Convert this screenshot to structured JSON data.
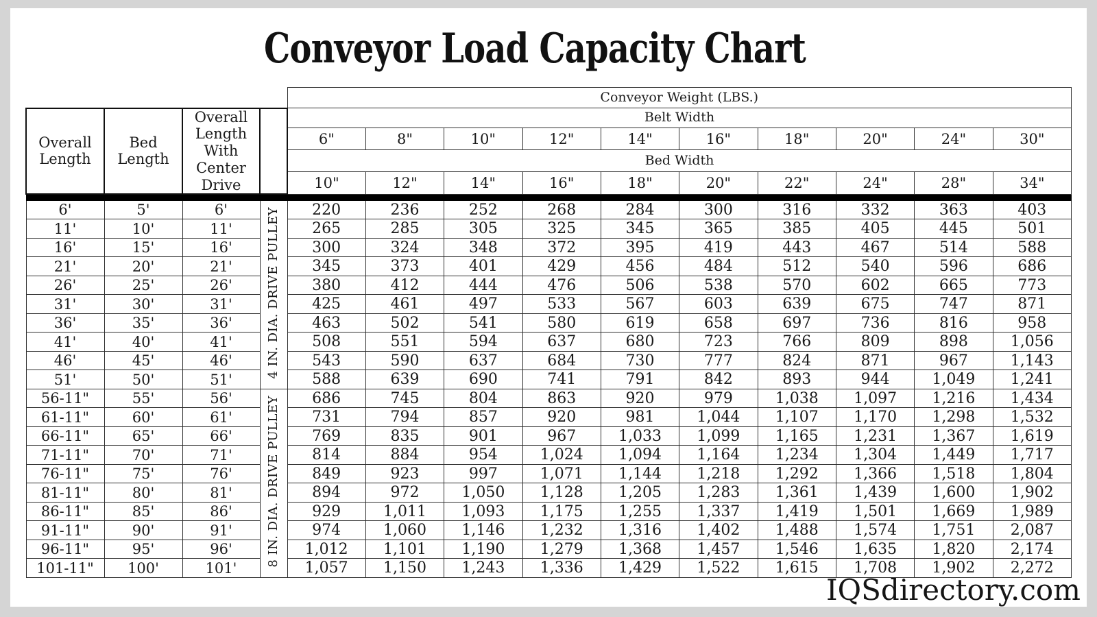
{
  "title": "Conveyor Load Capacity Chart",
  "watermark": "IQSdirectory.com",
  "colors": {
    "background": "#d5d5d5",
    "page": "#ffffff",
    "text": "#1a1a1a",
    "divider_bar": "#000000"
  },
  "chart_data": {
    "type": "table",
    "title": "Conveyor Load Capacity Chart",
    "weight_header": "Conveyor Weight (LBS.)",
    "belt_width_label": "Belt Width",
    "bed_width_label": "Bed Width",
    "belt_widths": [
      "6\"",
      "8\"",
      "10\"",
      "12\"",
      "14\"",
      "16\"",
      "18\"",
      "20\"",
      "24\"",
      "30\""
    ],
    "bed_widths": [
      "10\"",
      "12\"",
      "14\"",
      "16\"",
      "18\"",
      "20\"",
      "22\"",
      "24\"",
      "28\"",
      "34\""
    ],
    "left_headers": [
      "Overall Length",
      "Bed Length",
      "Overall Length With Center Drive"
    ],
    "sections": [
      {
        "pulley": "4 IN. DIA. DRIVE PULLEY",
        "rows": [
          {
            "overall_length": "6'",
            "bed_length": "5'",
            "center_drive": "6'",
            "weights": [
              "220",
              "236",
              "252",
              "268",
              "284",
              "300",
              "316",
              "332",
              "363",
              "403"
            ]
          },
          {
            "overall_length": "11'",
            "bed_length": "10'",
            "center_drive": "11'",
            "weights": [
              "265",
              "285",
              "305",
              "325",
              "345",
              "365",
              "385",
              "405",
              "445",
              "501"
            ]
          },
          {
            "overall_length": "16'",
            "bed_length": "15'",
            "center_drive": "16'",
            "weights": [
              "300",
              "324",
              "348",
              "372",
              "395",
              "419",
              "443",
              "467",
              "514",
              "588"
            ]
          },
          {
            "overall_length": "21'",
            "bed_length": "20'",
            "center_drive": "21'",
            "weights": [
              "345",
              "373",
              "401",
              "429",
              "456",
              "484",
              "512",
              "540",
              "596",
              "686"
            ]
          },
          {
            "overall_length": "26'",
            "bed_length": "25'",
            "center_drive": "26'",
            "weights": [
              "380",
              "412",
              "444",
              "476",
              "506",
              "538",
              "570",
              "602",
              "665",
              "773"
            ]
          },
          {
            "overall_length": "31'",
            "bed_length": "30'",
            "center_drive": "31'",
            "weights": [
              "425",
              "461",
              "497",
              "533",
              "567",
              "603",
              "639",
              "675",
              "747",
              "871"
            ]
          },
          {
            "overall_length": "36'",
            "bed_length": "35'",
            "center_drive": "36'",
            "weights": [
              "463",
              "502",
              "541",
              "580",
              "619",
              "658",
              "697",
              "736",
              "816",
              "958"
            ]
          },
          {
            "overall_length": "41'",
            "bed_length": "40'",
            "center_drive": "41'",
            "weights": [
              "508",
              "551",
              "594",
              "637",
              "680",
              "723",
              "766",
              "809",
              "898",
              "1,056"
            ]
          },
          {
            "overall_length": "46'",
            "bed_length": "45'",
            "center_drive": "46'",
            "weights": [
              "543",
              "590",
              "637",
              "684",
              "730",
              "777",
              "824",
              "871",
              "967",
              "1,143"
            ]
          },
          {
            "overall_length": "51'",
            "bed_length": "50'",
            "center_drive": "51'",
            "weights": [
              "588",
              "639",
              "690",
              "741",
              "791",
              "842",
              "893",
              "944",
              "1,049",
              "1,241"
            ]
          }
        ]
      },
      {
        "pulley": "8 IN. DIA. DRIVE PULLEY",
        "rows": [
          {
            "overall_length": "56-11\"",
            "bed_length": "55'",
            "center_drive": "56'",
            "weights": [
              "686",
              "745",
              "804",
              "863",
              "920",
              "979",
              "1,038",
              "1,097",
              "1,216",
              "1,434"
            ]
          },
          {
            "overall_length": "61-11\"",
            "bed_length": "60'",
            "center_drive": "61'",
            "weights": [
              "731",
              "794",
              "857",
              "920",
              "981",
              "1,044",
              "1,107",
              "1,170",
              "1,298",
              "1,532"
            ]
          },
          {
            "overall_length": "66-11\"",
            "bed_length": "65'",
            "center_drive": "66'",
            "weights": [
              "769",
              "835",
              "901",
              "967",
              "1,033",
              "1,099",
              "1,165",
              "1,231",
              "1,367",
              "1,619"
            ]
          },
          {
            "overall_length": "71-11\"",
            "bed_length": "70'",
            "center_drive": "71'",
            "weights": [
              "814",
              "884",
              "954",
              "1,024",
              "1,094",
              "1,164",
              "1,234",
              "1,304",
              "1,449",
              "1,717"
            ]
          },
          {
            "overall_length": "76-11\"",
            "bed_length": "75'",
            "center_drive": "76'",
            "weights": [
              "849",
              "923",
              "997",
              "1,071",
              "1,144",
              "1,218",
              "1,292",
              "1,366",
              "1,518",
              "1,804"
            ]
          },
          {
            "overall_length": "81-11\"",
            "bed_length": "80'",
            "center_drive": "81'",
            "weights": [
              "894",
              "972",
              "1,050",
              "1,128",
              "1,205",
              "1,283",
              "1,361",
              "1,439",
              "1,600",
              "1,902"
            ]
          },
          {
            "overall_length": "86-11\"",
            "bed_length": "85'",
            "center_drive": "86'",
            "weights": [
              "929",
              "1,011",
              "1,093",
              "1,175",
              "1,255",
              "1,337",
              "1,419",
              "1,501",
              "1,669",
              "1,989"
            ]
          },
          {
            "overall_length": "91-11\"",
            "bed_length": "90'",
            "center_drive": "91'",
            "weights": [
              "974",
              "1,060",
              "1,146",
              "1,232",
              "1,316",
              "1,402",
              "1,488",
              "1,574",
              "1,751",
              "2,087"
            ]
          },
          {
            "overall_length": "96-11\"",
            "bed_length": "95'",
            "center_drive": "96'",
            "weights": [
              "1,012",
              "1,101",
              "1,190",
              "1,279",
              "1,368",
              "1,457",
              "1,546",
              "1,635",
              "1,820",
              "2,174"
            ]
          },
          {
            "overall_length": "101-11\"",
            "bed_length": "100'",
            "center_drive": "101'",
            "weights": [
              "1,057",
              "1,150",
              "1,243",
              "1,336",
              "1,429",
              "1,522",
              "1,615",
              "1,708",
              "1,902",
              "2,272"
            ]
          }
        ]
      }
    ]
  }
}
